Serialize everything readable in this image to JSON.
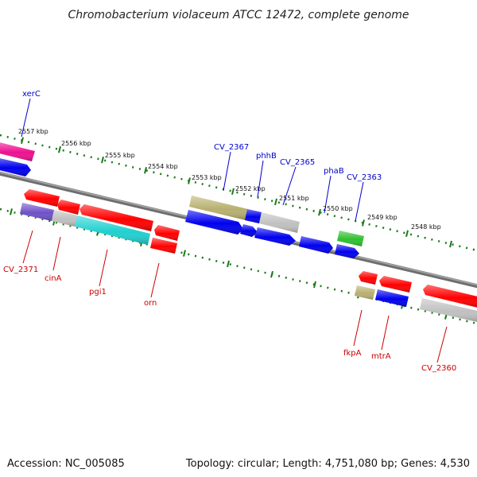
{
  "title": "Chromobacterium violaceum ATCC 12472, complete genome",
  "footer": {
    "accession": "Accession: NC_005085",
    "summary": "Topology: circular; Length: 4,751,080 bp; Genes: 4,530"
  },
  "colors": {
    "backbone": "#808080",
    "tick": "#1a7a1a",
    "label_top": "#0000cc",
    "label_bottom": "#cc0000",
    "red": "#ff0000",
    "blue": "#0000ee",
    "grey": "#c0c0c0",
    "cyan": "#20d0d0",
    "olive": "#b8b070",
    "green": "#30c030",
    "magenta": "#ee1090",
    "purple": "#7050c8"
  },
  "ticks": [
    {
      "label": "2557 kbp",
      "tx": 0.0
    },
    {
      "label": "2556 kbp",
      "tx": 0.0
    },
    {
      "label": "2555 kbp",
      "tx": 0.0
    },
    {
      "label": "2554 kbp",
      "tx": 0.0
    },
    {
      "label": "2553 kbp",
      "tx": 0.0
    },
    {
      "label": "2552 kbp",
      "tx": 0.0
    },
    {
      "label": "2551 kbp",
      "tx": 0.0
    },
    {
      "label": "2550 kbp",
      "tx": 0.0
    },
    {
      "label": "2549 kbp",
      "tx": 0.0
    },
    {
      "label": "2548 kbp",
      "tx": 0.0
    }
  ],
  "gene_labels_top": [
    "xerC",
    "CV_2367",
    "phhB",
    "CV_2365",
    "phaB",
    "CV_2363"
  ],
  "gene_labels_bottom": [
    "CV_2371",
    "cinA",
    "pgi1",
    "orn",
    "fkpA",
    "mtrA",
    "CV_2360"
  ]
}
